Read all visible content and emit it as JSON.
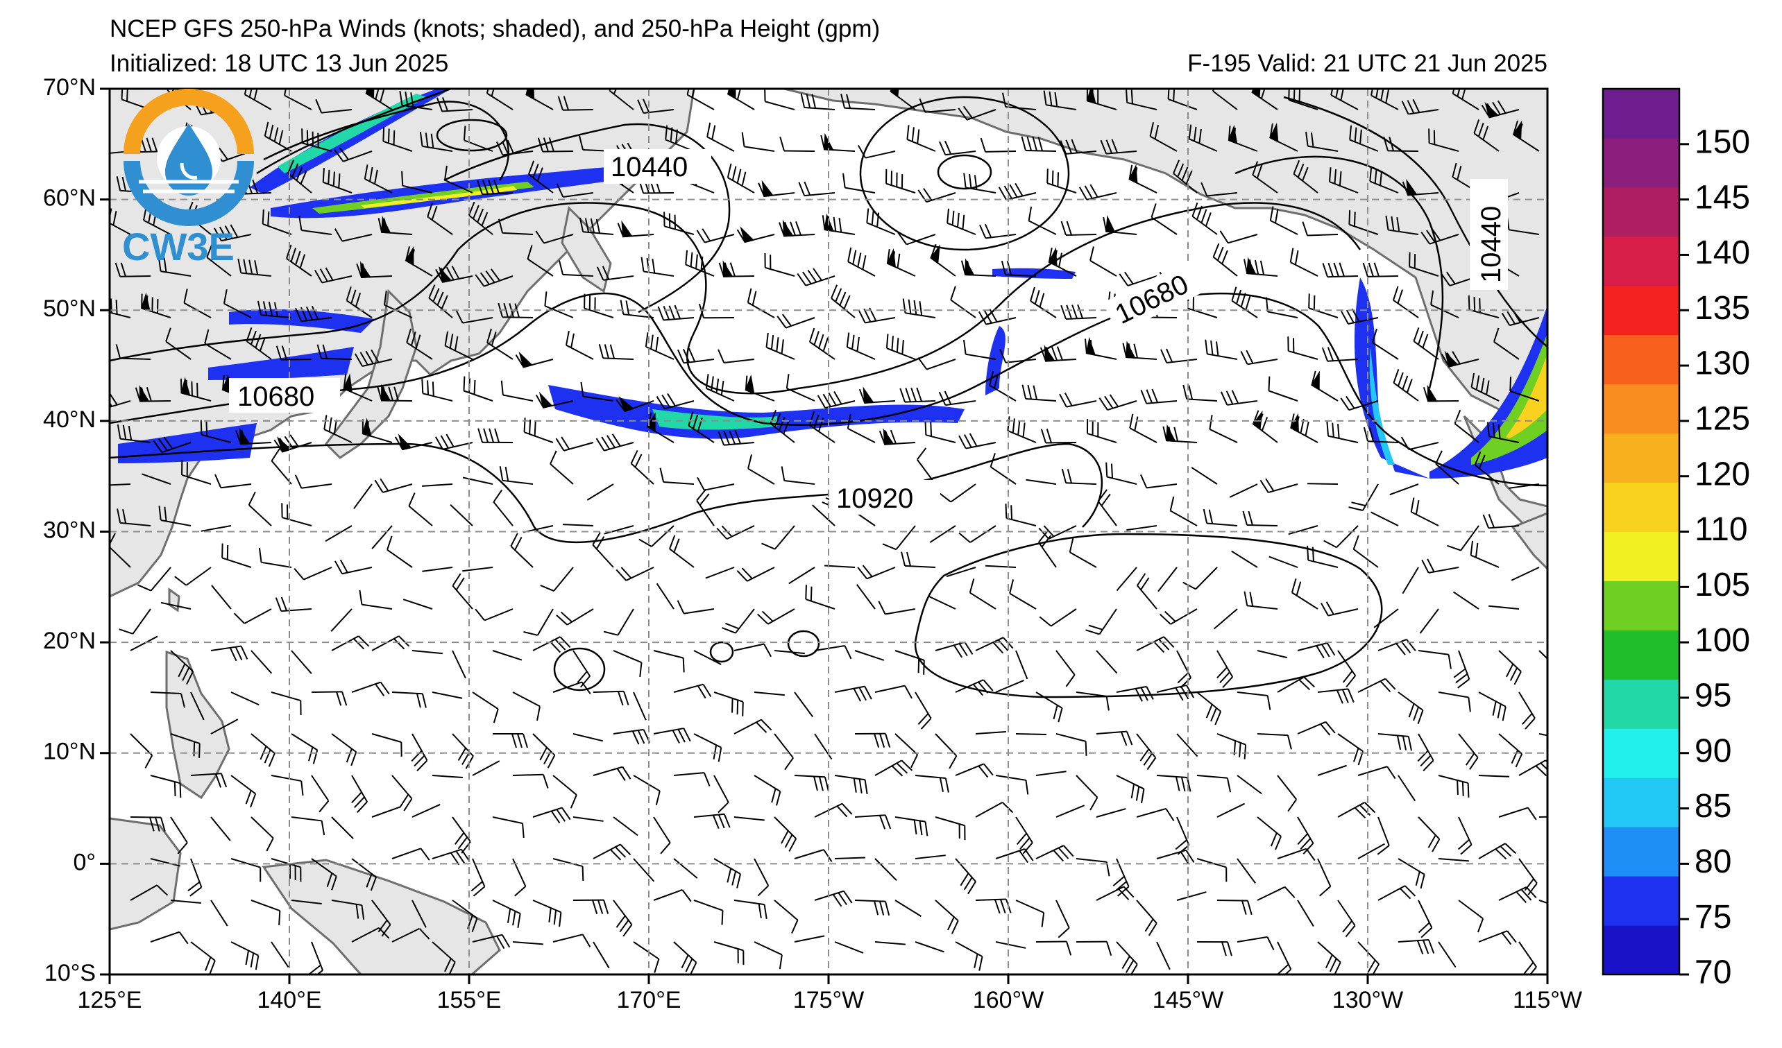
{
  "header": {
    "title": "NCEP GFS 250-hPa Winds (knots; shaded), and 250-hPa Height (gpm)",
    "initialized": "Initialized: 18 UTC 13 Jun 2025",
    "valid": "F-195  Valid: 21 UTC 21 Jun 2025"
  },
  "logo": {
    "text": "CW3E"
  },
  "map": {
    "lat_labels": [
      "70°N",
      "60°N",
      "50°N",
      "40°N",
      "30°N",
      "20°N",
      "10°N",
      "0°",
      "10°S"
    ],
    "lon_labels": [
      "125°E",
      "140°E",
      "155°E",
      "170°E",
      "175°W",
      "160°W",
      "145°W",
      "130°W",
      "115°W"
    ],
    "contour_labels": [
      {
        "text": "10440"
      },
      {
        "text": "10440"
      },
      {
        "text": "10680"
      },
      {
        "text": "10680"
      },
      {
        "text": "10920"
      }
    ]
  },
  "colorbar": {
    "levels": [
      "70",
      "75",
      "80",
      "85",
      "90",
      "95",
      "100",
      "105",
      "110",
      "120",
      "125",
      "130",
      "135",
      "140",
      "145",
      "150"
    ],
    "colors": [
      "#1a12c8",
      "#1e30f0",
      "#1e8ef5",
      "#22c8f5",
      "#22f0ec",
      "#22d8a6",
      "#1fbd2a",
      "#6fcf22",
      "#f0f022",
      "#f8d21e",
      "#f8b01e",
      "#f88c1e",
      "#f8601e",
      "#f52222",
      "#d81e48",
      "#b01e62",
      "#8c1e7e",
      "#6e1e8e"
    ]
  }
}
